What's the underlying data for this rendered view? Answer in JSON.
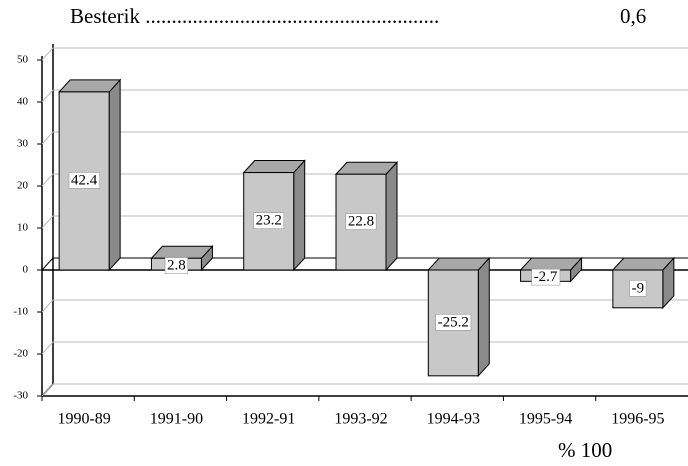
{
  "chart_data": {
    "type": "bar3d",
    "annotations": [
      "Besterik ........................................................",
      "0,6",
      "% 100"
    ],
    "categories": [
      "1990-89",
      "1991-90",
      "1992-91",
      "1993-92",
      "1994-93",
      "1995-94",
      "1996-95"
    ],
    "values": [
      42.4,
      2.8,
      23.2,
      22.8,
      -25.2,
      -2.7,
      -9
    ],
    "color": "#c8c8c8",
    "ylim": [
      -30,
      50
    ],
    "yticks": [
      -30,
      -20,
      -10,
      0,
      10,
      20,
      30,
      40,
      50
    ],
    "grid": true
  }
}
